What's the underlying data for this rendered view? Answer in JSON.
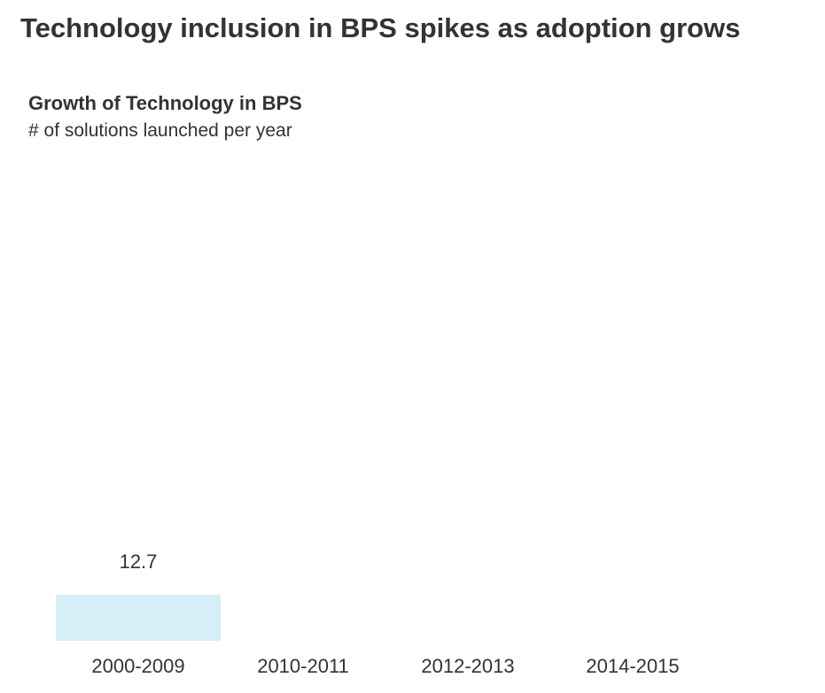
{
  "headline": "Technology inclusion in BPS spikes as adoption grows",
  "chart_data": {
    "type": "bar",
    "title": "Growth of Technology in BPS",
    "subtitle": "# of solutions launched per year",
    "categories": [
      "2000-2009",
      "2010-2011",
      "2012-2013",
      "2014-2015"
    ],
    "values": [
      12.7,
      null,
      null,
      null
    ],
    "data_labels": [
      "12.7",
      "",
      "",
      ""
    ],
    "bar_color": "#d6eef7",
    "xlabel": "",
    "ylabel": "",
    "grid": false,
    "y_axis_shown": false
  }
}
